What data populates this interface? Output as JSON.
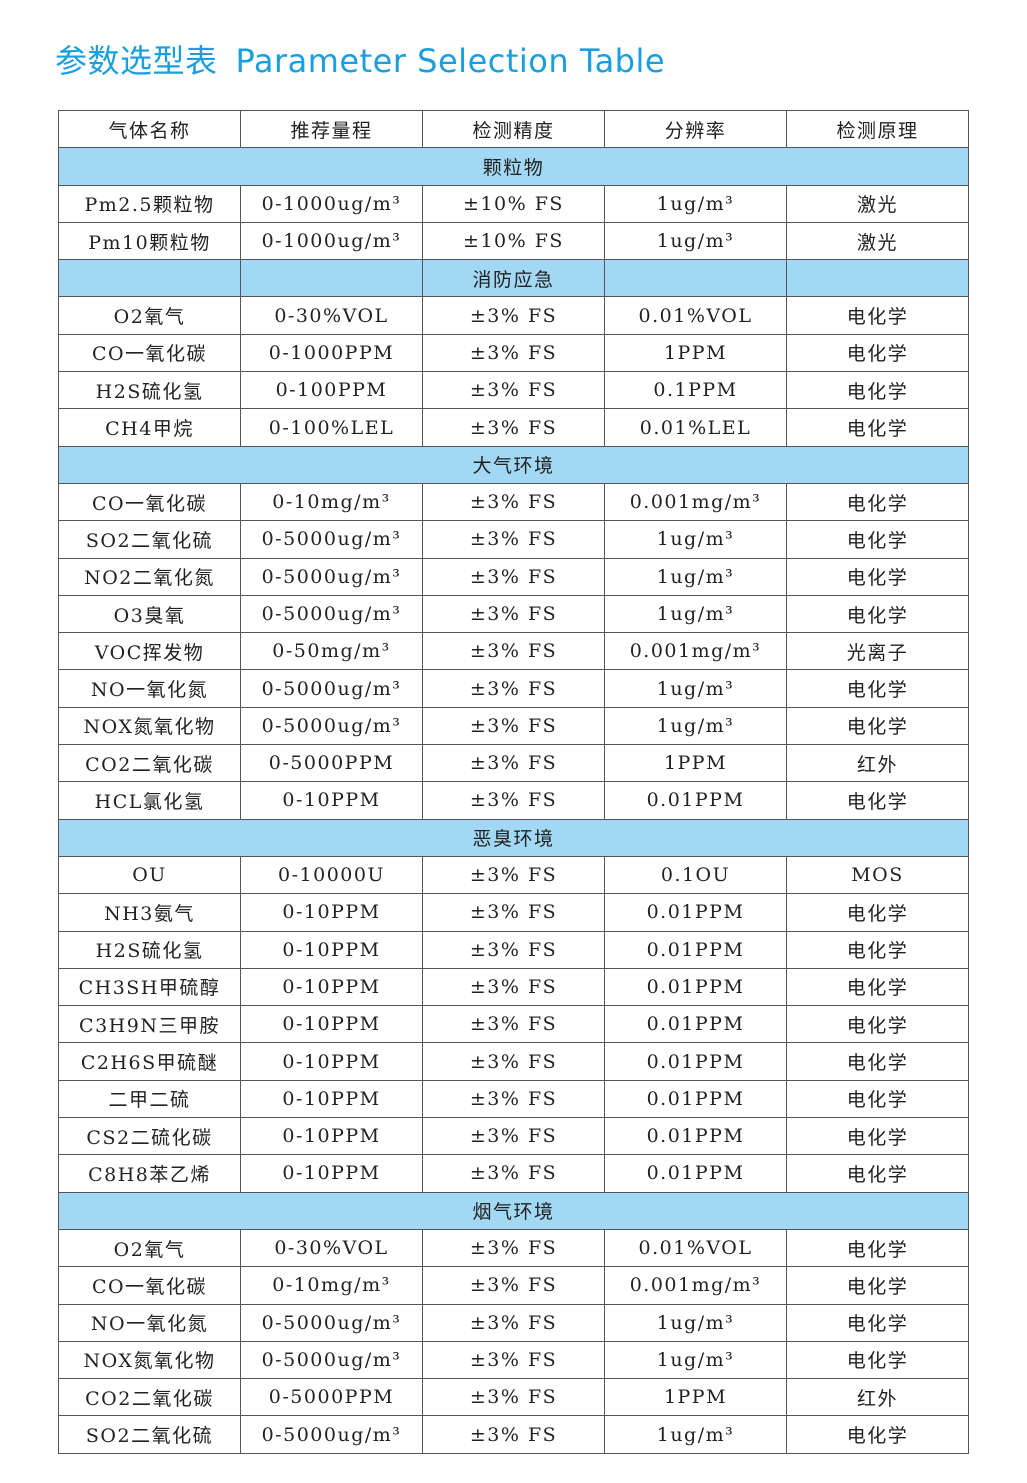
{
  "title": {
    "cn": "参数选型表",
    "en": "Parameter Selection Table"
  },
  "colors": {
    "title": "#1a9ee0",
    "section_bg": "#a3d8f4"
  },
  "headers": [
    "气体名称",
    "推荐量程",
    "检测精度",
    "分辨率",
    "检测原理"
  ],
  "sections": [
    {
      "name": "颗粒物",
      "rows": [
        [
          "Pm2.5颗粒物",
          "0-1000ug/m³",
          "±10% FS",
          "1ug/m³",
          "激光"
        ],
        [
          "Pm10颗粒物",
          "0-1000ug/m³",
          "±10% FS",
          "1ug/m³",
          "激光"
        ]
      ]
    },
    {
      "name": "消防应急",
      "split": true,
      "rows": [
        [
          "O2氧气",
          "0-30%VOL",
          "±3% FS",
          "0.01%VOL",
          "电化学"
        ],
        [
          "CO一氧化碳",
          "0-1000PPM",
          "±3% FS",
          "1PPM",
          "电化学"
        ],
        [
          "H2S硫化氢",
          "0-100PPM",
          "±3% FS",
          "0.1PPM",
          "电化学"
        ],
        [
          "CH4甲烷",
          "0-100%LEL",
          "±3% FS",
          "0.01%LEL",
          "电化学"
        ]
      ]
    },
    {
      "name": "大气环境",
      "rows": [
        [
          "CO一氧化碳",
          "0-10mg/m³",
          "±3% FS",
          "0.001mg/m³",
          "电化学"
        ],
        [
          "SO2二氧化硫",
          "0-5000ug/m³",
          "±3% FS",
          "1ug/m³",
          "电化学"
        ],
        [
          "NO2二氧化氮",
          "0-5000ug/m³",
          "±3% FS",
          "1ug/m³",
          "电化学"
        ],
        [
          "O3臭氧",
          "0-5000ug/m³",
          "±3% FS",
          "1ug/m³",
          "电化学"
        ],
        [
          "VOC挥发物",
          "0-50mg/m³",
          "±3% FS",
          "0.001mg/m³",
          "光离子"
        ],
        [
          "NO一氧化氮",
          "0-5000ug/m³",
          "±3% FS",
          "1ug/m³",
          "电化学"
        ],
        [
          "NOX氮氧化物",
          "0-5000ug/m³",
          "±3% FS",
          "1ug/m³",
          "电化学"
        ],
        [
          "CO2二氧化碳",
          "0-5000PPM",
          "±3% FS",
          "1PPM",
          "红外"
        ],
        [
          "HCL氯化氢",
          "0-10PPM",
          "±3% FS",
          "0.01PPM",
          "电化学"
        ]
      ]
    },
    {
      "name": "恶臭环境",
      "rows": [
        [
          "OU",
          "0-10000U",
          "±3% FS",
          "0.1OU",
          "MOS"
        ],
        [
          "NH3氨气",
          "0-10PPM",
          "±3% FS",
          "0.01PPM",
          "电化学"
        ],
        [
          "H2S硫化氢",
          "0-10PPM",
          "±3% FS",
          "0.01PPM",
          "电化学"
        ],
        [
          "CH3SH甲硫醇",
          "0-10PPM",
          "±3% FS",
          "0.01PPM",
          "电化学"
        ],
        [
          "C3H9N三甲胺",
          "0-10PPM",
          "±3% FS",
          "0.01PPM",
          "电化学"
        ],
        [
          "C2H6S甲硫醚",
          "0-10PPM",
          "±3% FS",
          "0.01PPM",
          "电化学"
        ],
        [
          "二甲二硫",
          "0-10PPM",
          "±3% FS",
          "0.01PPM",
          "电化学"
        ],
        [
          "CS2二硫化碳",
          "0-10PPM",
          "±3% FS",
          "0.01PPM",
          "电化学"
        ],
        [
          "C8H8苯乙烯",
          "0-10PPM",
          "±3% FS",
          "0.01PPM",
          "电化学"
        ]
      ]
    },
    {
      "name": "烟气环境",
      "rows": [
        [
          "O2氧气",
          "0-30%VOL",
          "±3% FS",
          "0.01%VOL",
          "电化学"
        ],
        [
          "CO一氧化碳",
          "0-10mg/m³",
          "±3% FS",
          "0.001mg/m³",
          "电化学"
        ],
        [
          "NO一氧化氮",
          "0-5000ug/m³",
          "±3% FS",
          "1ug/m³",
          "电化学"
        ],
        [
          "NOX氮氧化物",
          "0-5000ug/m³",
          "±3% FS",
          "1ug/m³",
          "电化学"
        ],
        [
          "CO2二氧化碳",
          "0-5000PPM",
          "±3% FS",
          "1PPM",
          "红外"
        ],
        [
          "SO2二氧化硫",
          "0-5000ug/m³",
          "±3% FS",
          "1ug/m³",
          "电化学"
        ]
      ]
    }
  ]
}
